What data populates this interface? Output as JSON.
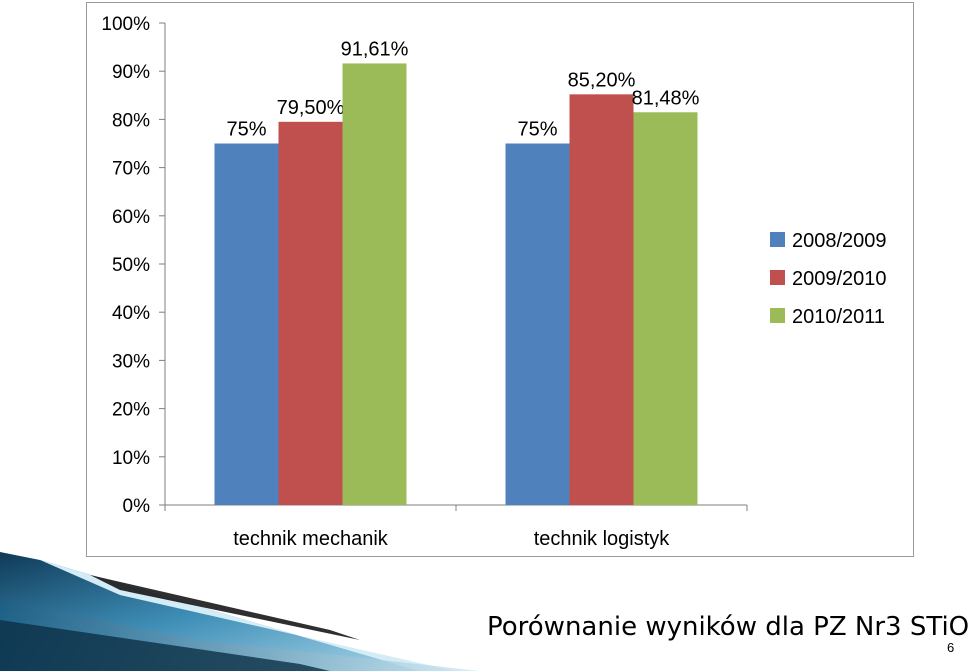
{
  "chart_data": {
    "type": "bar",
    "categories": [
      "technik mechanik",
      "technik logistyk"
    ],
    "series": [
      {
        "name": "2008/2009",
        "values": [
          75,
          75
        ],
        "labels": [
          "75%",
          "75%"
        ],
        "color": "#4f81bd"
      },
      {
        "name": "2009/2010",
        "values": [
          79.5,
          85.2
        ],
        "labels": [
          "79,50%",
          "85,20%"
        ],
        "color": "#c0504d"
      },
      {
        "name": "2010/2011",
        "values": [
          91.61,
          81.48
        ],
        "labels": [
          "91,61%",
          "81,48%"
        ],
        "color": "#9bbb59"
      }
    ],
    "y_ticks": [
      "0%",
      "10%",
      "20%",
      "30%",
      "40%",
      "50%",
      "60%",
      "70%",
      "80%",
      "90%",
      "100%"
    ],
    "ylim": [
      0,
      100
    ],
    "grid": false,
    "legend_position": "right"
  },
  "footer": {
    "title": "Porównanie wyników dla PZ Nr3 STiO",
    "page_number": "6"
  }
}
